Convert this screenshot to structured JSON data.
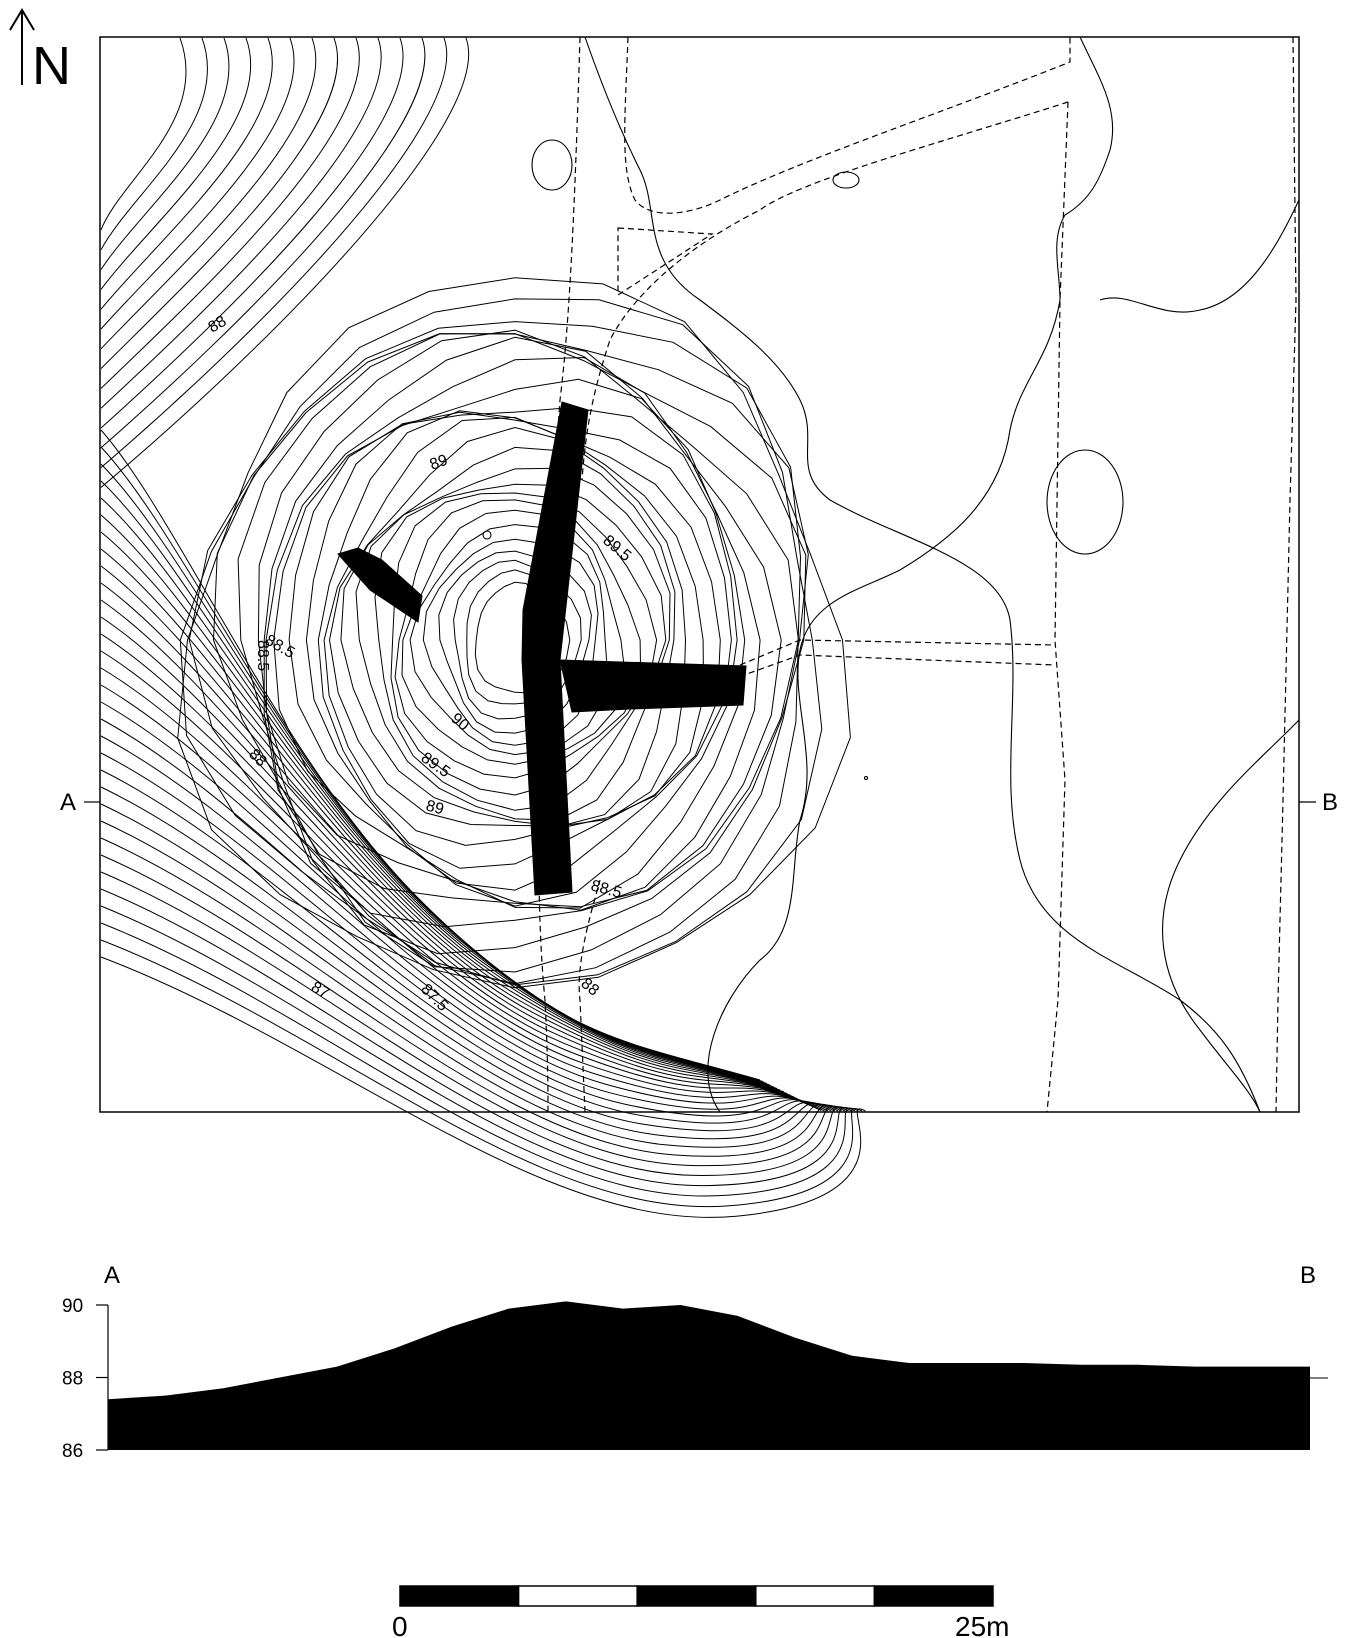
{
  "north": {
    "label": "N"
  },
  "section_markers": {
    "start": "A",
    "end": "B"
  },
  "contour_labels": [
    {
      "text": "88",
      "rot": -30
    },
    {
      "text": "88.5",
      "rot": 30
    },
    {
      "text": "89",
      "rot": -20
    },
    {
      "text": "89.5",
      "rot": 40
    },
    {
      "text": "88.5",
      "rot": 90
    },
    {
      "text": "90",
      "rot": 40
    },
    {
      "text": "89.5",
      "rot": 35
    },
    {
      "text": "89",
      "rot": 15
    },
    {
      "text": "88",
      "rot": 45
    },
    {
      "text": "88.5",
      "rot": 15
    },
    {
      "text": "87",
      "rot": 30
    },
    {
      "text": "87.5",
      "rot": 45
    },
    {
      "text": "88",
      "rot": 40
    }
  ],
  "profile": {
    "label_start": "A",
    "label_end": "B",
    "y_ticks": [
      "90",
      "88",
      "86"
    ],
    "elevations": [
      87.4,
      87.5,
      87.7,
      88.0,
      88.3,
      88.8,
      89.4,
      89.9,
      90.1,
      89.9,
      90.0,
      89.7,
      89.1,
      88.6,
      88.4,
      88.4,
      88.4,
      88.35,
      88.35,
      88.3,
      88.3,
      88.3
    ]
  },
  "scale_bar": {
    "start_label": "0",
    "end_label": "25m",
    "segments": 5
  }
}
